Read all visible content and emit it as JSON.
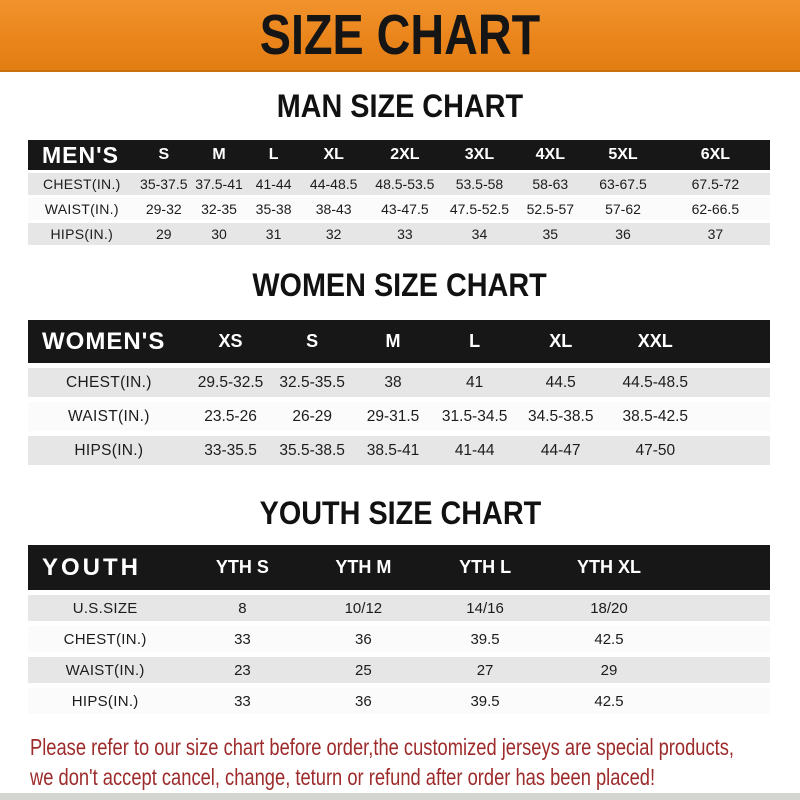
{
  "banner": {
    "title": "SIZE CHART",
    "bg_color": "#EA851B",
    "text_color": "#151515"
  },
  "sections": [
    {
      "heading": "MAN SIZE CHART",
      "table": {
        "label": "MEN'S",
        "columns": [
          "S",
          "M",
          "L",
          "XL",
          "2XL",
          "3XL",
          "4XL",
          "5XL",
          "6XL"
        ],
        "rows": [
          {
            "label": "CHEST(IN.)",
            "values": [
              "35-37.5",
              "37.5-41",
              "41-44",
              "44-48.5",
              "48.5-53.5",
              "53.5-58",
              "58-63",
              "63-67.5",
              "67.5-72"
            ]
          },
          {
            "label": "WAIST(IN.)",
            "values": [
              "29-32",
              "32-35",
              "35-38",
              "38-43",
              "43-47.5",
              "47.5-52.5",
              "52.5-57",
              "57-62",
              "62-66.5"
            ]
          },
          {
            "label": "HIPS(IN.)",
            "values": [
              "29",
              "30",
              "31",
              "32",
              "33",
              "34",
              "35",
              "36",
              "37"
            ]
          }
        ]
      }
    },
    {
      "heading": "WOMEN SIZE CHART",
      "table": {
        "label": "WOMEN'S",
        "columns": [
          "XS",
          "S",
          "M",
          "L",
          "XL",
          "XXL"
        ],
        "rows": [
          {
            "label": "CHEST(IN.)",
            "values": [
              "29.5-32.5",
              "32.5-35.5",
              "38",
              "41",
              "44.5",
              "44.5-48.5"
            ]
          },
          {
            "label": "WAIST(IN.)",
            "values": [
              "23.5-26",
              "26-29",
              "29-31.5",
              "31.5-34.5",
              "34.5-38.5",
              "38.5-42.5"
            ]
          },
          {
            "label": "HIPS(IN.)",
            "values": [
              "33-35.5",
              "35.5-38.5",
              "38.5-41",
              "41-44",
              "44-47",
              "47-50"
            ]
          }
        ]
      }
    },
    {
      "heading": "YOUTH SIZE CHART",
      "table": {
        "label": "YOUTH",
        "columns": [
          "YTH S",
          "YTH M",
          "YTH L",
          "YTH XL"
        ],
        "rows": [
          {
            "label": "U.S.SIZE",
            "values": [
              "8",
              "10/12",
              "14/16",
              "18/20"
            ]
          },
          {
            "label": "CHEST(IN.)",
            "values": [
              "33",
              "36",
              "39.5",
              "42.5"
            ]
          },
          {
            "label": "WAIST(IN.)",
            "values": [
              "23",
              "25",
              "27",
              "29"
            ]
          },
          {
            "label": "HIPS(IN.)",
            "values": [
              "33",
              "36",
              "39.5",
              "42.5"
            ]
          }
        ]
      }
    }
  ],
  "footer": {
    "line1": "Please refer to our size chart before order,the customized jerseys are special products,",
    "line2": "we don't accept cancel, change, teturn or refund after order has been placed!",
    "text_color": "#9E2B2B"
  },
  "colors": {
    "header_bar": "#171717",
    "row_gray": "#E6E6E6",
    "row_white": "#FBFBFB"
  }
}
